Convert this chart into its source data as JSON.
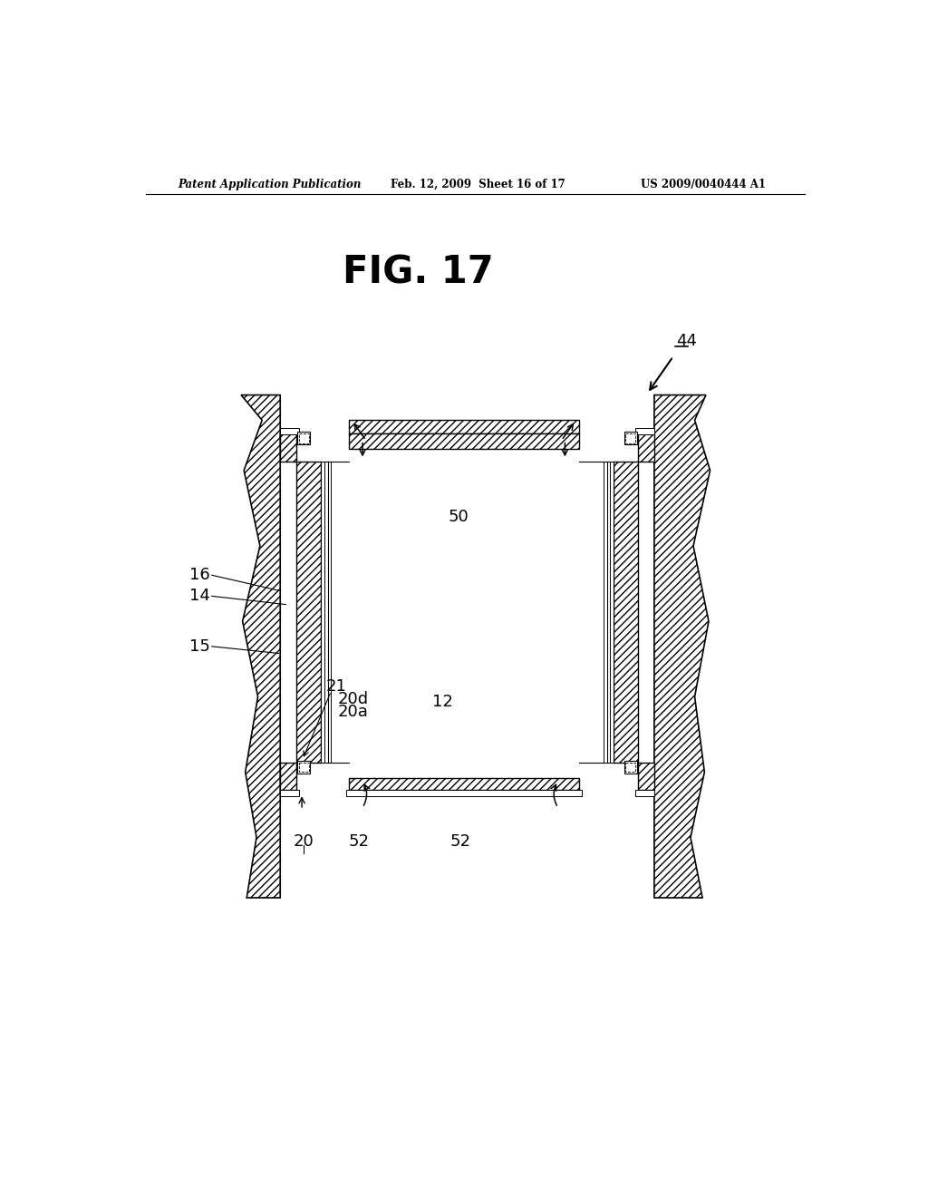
{
  "background_color": "#ffffff",
  "header_left": "Patent Application Publication",
  "header_mid": "Feb. 12, 2009  Sheet 16 of 17",
  "header_right": "US 2009/0040444 A1",
  "fig_title": "FIG. 17"
}
